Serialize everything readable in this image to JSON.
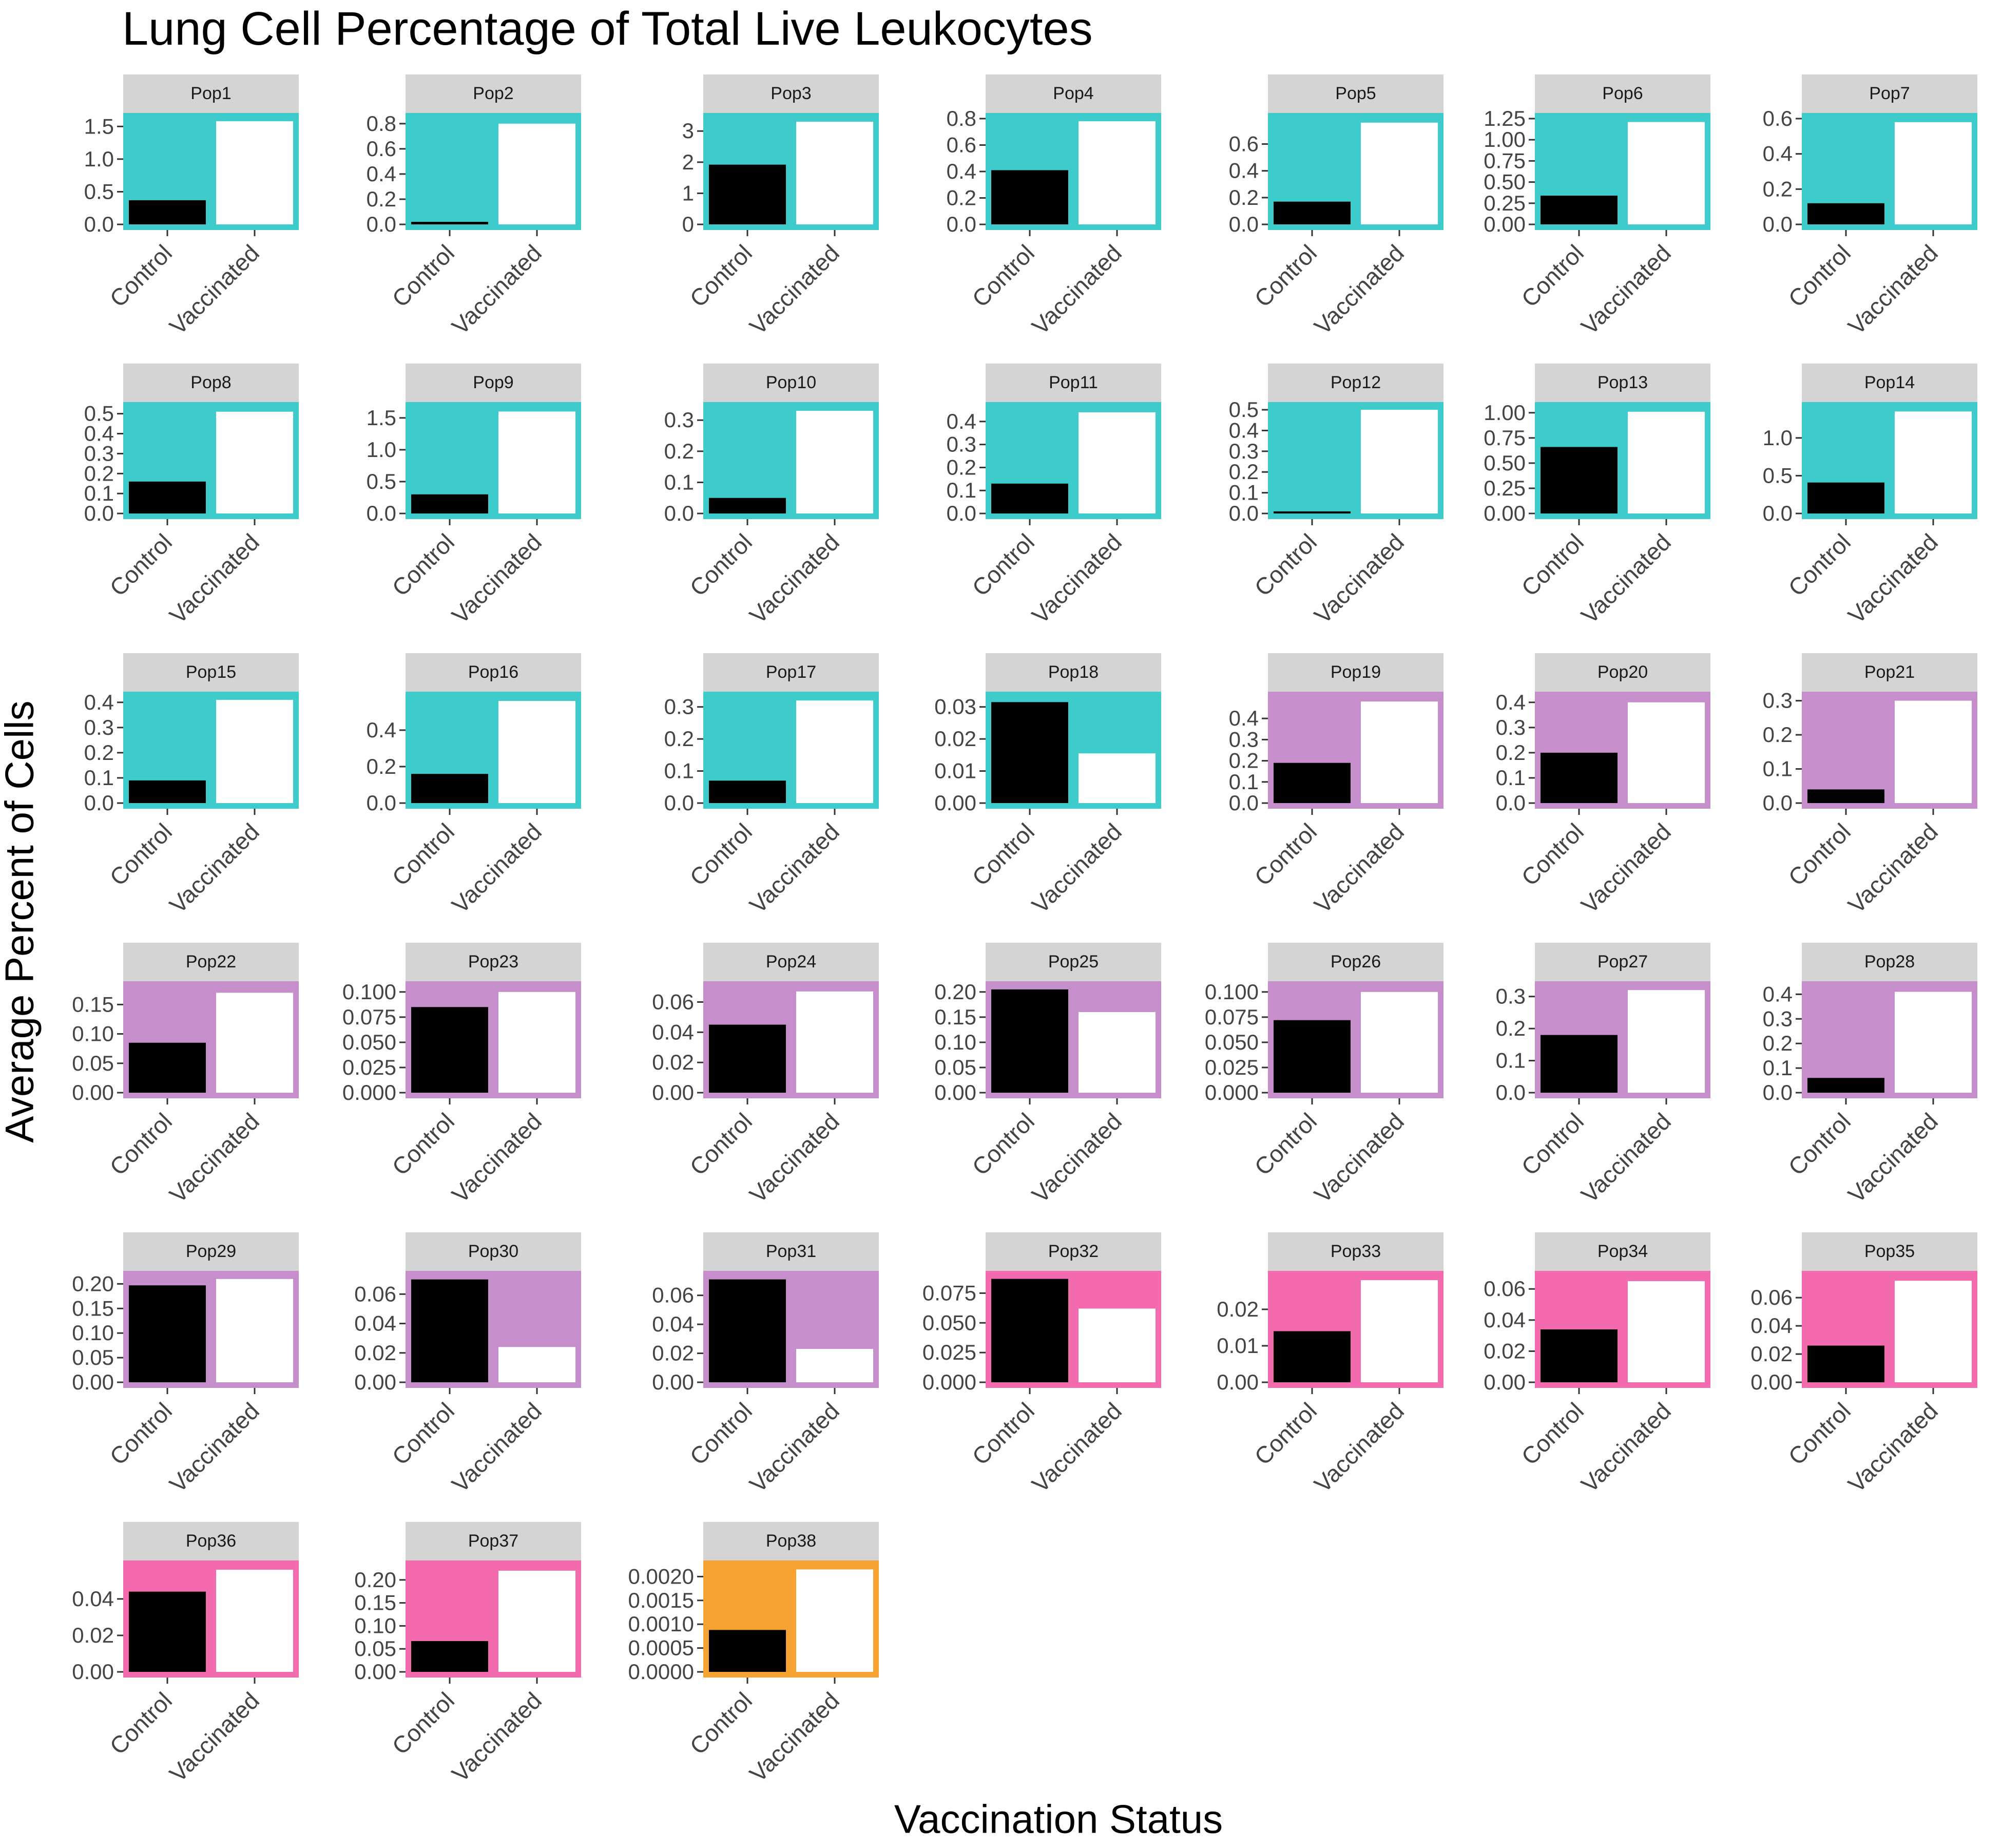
{
  "chart_data": {
    "type": "bar",
    "title": "Lung Cell Percentage of Total Live Leukocytes",
    "xlabel": "Vaccination Status",
    "ylabel": "Average Percent of Cells",
    "categories": [
      "Control",
      "Vaccinated"
    ],
    "group_colors": {
      "teal": "#3ECBCB",
      "purple": "#C68FCB",
      "pink": "#F46AAE",
      "orange": "#F6A332"
    },
    "bar_colors": {
      "Control": "#000000",
      "Vaccinated": "#ffffff"
    },
    "strip_color": "#D4D4D4",
    "facets": [
      {
        "name": "Pop1",
        "group": "teal",
        "ticks": [
          "0.0",
          "0.5",
          "1.0",
          "1.5"
        ],
        "ylim": [
          0,
          1.62
        ],
        "values": [
          0.37,
          1.58
        ]
      },
      {
        "name": "Pop2",
        "group": "teal",
        "ticks": [
          "0.0",
          "0.2",
          "0.4",
          "0.6",
          "0.8"
        ],
        "ylim": [
          0,
          0.84
        ],
        "values": [
          0.02,
          0.8
        ]
      },
      {
        "name": "Pop3",
        "group": "teal",
        "ticks": [
          "0",
          "1",
          "2",
          "3"
        ],
        "ylim": [
          0,
          3.4
        ],
        "values": [
          1.92,
          3.3
        ]
      },
      {
        "name": "Pop4",
        "group": "teal",
        "ticks": [
          "0.0",
          "0.2",
          "0.4",
          "0.6",
          "0.8"
        ],
        "ylim": [
          0,
          0.8
        ],
        "values": [
          0.41,
          0.78
        ]
      },
      {
        "name": "Pop5",
        "group": "teal",
        "ticks": [
          "0.0",
          "0.2",
          "0.4",
          "0.6"
        ],
        "ylim": [
          0,
          0.79
        ],
        "values": [
          0.17,
          0.76
        ]
      },
      {
        "name": "Pop6",
        "group": "teal",
        "ticks": [
          "0.00",
          "0.25",
          "0.50",
          "0.75",
          "1.00",
          "1.25"
        ],
        "ylim": [
          0,
          1.25
        ],
        "values": [
          0.34,
          1.21
        ]
      },
      {
        "name": "Pop7",
        "group": "teal",
        "ticks": [
          "0.0",
          "0.2",
          "0.4",
          "0.6"
        ],
        "ylim": [
          0,
          0.6
        ],
        "values": [
          0.12,
          0.58
        ]
      },
      {
        "name": "Pop8",
        "group": "teal",
        "ticks": [
          "0.0",
          "0.1",
          "0.2",
          "0.3",
          "0.4",
          "0.5"
        ],
        "ylim": [
          0,
          0.53
        ],
        "values": [
          0.16,
          0.51
        ]
      },
      {
        "name": "Pop9",
        "group": "teal",
        "ticks": [
          "0.0",
          "0.5",
          "1.0",
          "1.5"
        ],
        "ylim": [
          0,
          1.66
        ],
        "values": [
          0.3,
          1.6
        ]
      },
      {
        "name": "Pop10",
        "group": "teal",
        "ticks": [
          "0.0",
          "0.1",
          "0.2",
          "0.3"
        ],
        "ylim": [
          0,
          0.34
        ],
        "values": [
          0.05,
          0.33
        ]
      },
      {
        "name": "Pop11",
        "group": "teal",
        "ticks": [
          "0.0",
          "0.1",
          "0.2",
          "0.3",
          "0.4"
        ],
        "ylim": [
          0,
          0.46
        ],
        "values": [
          0.13,
          0.44
        ]
      },
      {
        "name": "Pop12",
        "group": "teal",
        "ticks": [
          "0.0",
          "0.1",
          "0.2",
          "0.3",
          "0.4",
          "0.5"
        ],
        "ylim": [
          0,
          0.51
        ],
        "values": [
          0.01,
          0.5
        ]
      },
      {
        "name": "Pop13",
        "group": "teal",
        "ticks": [
          "0.00",
          "0.25",
          "0.50",
          "0.75",
          "1.00"
        ],
        "ylim": [
          0,
          1.05
        ],
        "values": [
          0.66,
          1.01
        ]
      },
      {
        "name": "Pop14",
        "group": "teal",
        "ticks": [
          "0.0",
          "0.5",
          "1.0"
        ],
        "ylim": [
          0,
          1.4
        ],
        "values": [
          0.41,
          1.35
        ]
      },
      {
        "name": "Pop15",
        "group": "teal",
        "ticks": [
          "0.0",
          "0.1",
          "0.2",
          "0.3",
          "0.4"
        ],
        "ylim": [
          0,
          0.42
        ],
        "values": [
          0.09,
          0.41
        ]
      },
      {
        "name": "Pop16",
        "group": "teal",
        "ticks": [
          "0.0",
          "0.2",
          "0.4"
        ],
        "ylim": [
          0,
          0.58
        ],
        "values": [
          0.16,
          0.56
        ]
      },
      {
        "name": "Pop17",
        "group": "teal",
        "ticks": [
          "0.0",
          "0.1",
          "0.2",
          "0.3"
        ],
        "ylim": [
          0,
          0.33
        ],
        "values": [
          0.07,
          0.32
        ]
      },
      {
        "name": "Pop18",
        "group": "teal",
        "ticks": [
          "0.00",
          "0.01",
          "0.02",
          "0.03"
        ],
        "ylim": [
          0,
          0.033
        ],
        "values": [
          0.0315,
          0.0155
        ]
      },
      {
        "name": "Pop19",
        "group": "purple",
        "ticks": [
          "0.0",
          "0.1",
          "0.2",
          "0.3",
          "0.4"
        ],
        "ylim": [
          0,
          0.5
        ],
        "values": [
          0.19,
          0.48
        ]
      },
      {
        "name": "Pop20",
        "group": "purple",
        "ticks": [
          "0.0",
          "0.1",
          "0.2",
          "0.3",
          "0.4"
        ],
        "ylim": [
          0,
          0.42
        ],
        "values": [
          0.2,
          0.4
        ]
      },
      {
        "name": "Pop21",
        "group": "purple",
        "ticks": [
          "0.0",
          "0.1",
          "0.2",
          "0.3"
        ],
        "ylim": [
          0,
          0.31
        ],
        "values": [
          0.04,
          0.3
        ]
      },
      {
        "name": "Pop22",
        "group": "purple",
        "ticks": [
          "0.00",
          "0.05",
          "0.10",
          "0.15"
        ],
        "ylim": [
          0,
          0.18
        ],
        "values": [
          0.085,
          0.17
        ]
      },
      {
        "name": "Pop23",
        "group": "purple",
        "ticks": [
          "0.000",
          "0.025",
          "0.050",
          "0.075",
          "0.100"
        ],
        "ylim": [
          0,
          0.105
        ],
        "values": [
          0.085,
          0.1
        ]
      },
      {
        "name": "Pop24",
        "group": "purple",
        "ticks": [
          "0.00",
          "0.02",
          "0.04",
          "0.06"
        ],
        "ylim": [
          0,
          0.07
        ],
        "values": [
          0.045,
          0.067
        ]
      },
      {
        "name": "Pop25",
        "group": "purple",
        "ticks": [
          "0.00",
          "0.05",
          "0.10",
          "0.15",
          "0.20"
        ],
        "ylim": [
          0,
          0.21
        ],
        "values": [
          0.205,
          0.16
        ]
      },
      {
        "name": "Pop26",
        "group": "purple",
        "ticks": [
          "0.000",
          "0.025",
          "0.050",
          "0.075",
          "0.100"
        ],
        "ylim": [
          0,
          0.105
        ],
        "values": [
          0.072,
          0.1
        ]
      },
      {
        "name": "Pop27",
        "group": "purple",
        "ticks": [
          "0.0",
          "0.1",
          "0.2",
          "0.3"
        ],
        "ylim": [
          0,
          0.33
        ],
        "values": [
          0.18,
          0.32
        ]
      },
      {
        "name": "Pop28",
        "group": "purple",
        "ticks": [
          "0.0",
          "0.1",
          "0.2",
          "0.3",
          "0.4"
        ],
        "ylim": [
          0,
          0.43
        ],
        "values": [
          0.06,
          0.41
        ]
      },
      {
        "name": "Pop29",
        "group": "purple",
        "ticks": [
          "0.00",
          "0.05",
          "0.10",
          "0.15",
          "0.20"
        ],
        "ylim": [
          0,
          0.215
        ],
        "values": [
          0.197,
          0.21
        ]
      },
      {
        "name": "Pop30",
        "group": "purple",
        "ticks": [
          "0.00",
          "0.02",
          "0.04",
          "0.06"
        ],
        "ylim": [
          0,
          0.072
        ],
        "values": [
          0.07,
          0.024
        ]
      },
      {
        "name": "Pop31",
        "group": "purple",
        "ticks": [
          "0.00",
          "0.02",
          "0.04",
          "0.06"
        ],
        "ylim": [
          0,
          0.073
        ],
        "values": [
          0.071,
          0.023
        ]
      },
      {
        "name": "Pop32",
        "group": "pink",
        "ticks": [
          "0.000",
          "0.025",
          "0.050",
          "0.075"
        ],
        "ylim": [
          0,
          0.089
        ],
        "values": [
          0.087,
          0.062
        ]
      },
      {
        "name": "Pop33",
        "group": "pink",
        "ticks": [
          "0.00",
          "0.01",
          "0.02"
        ],
        "ylim": [
          0,
          0.029
        ],
        "values": [
          0.014,
          0.028
        ]
      },
      {
        "name": "Pop34",
        "group": "pink",
        "ticks": [
          "0.00",
          "0.02",
          "0.04",
          "0.06"
        ],
        "ylim": [
          0,
          0.068
        ],
        "values": [
          0.034,
          0.065
        ]
      },
      {
        "name": "Pop35",
        "group": "pink",
        "ticks": [
          "0.00",
          "0.02",
          "0.04",
          "0.06"
        ],
        "ylim": [
          0,
          0.075
        ],
        "values": [
          0.026,
          0.072
        ]
      },
      {
        "name": "Pop36",
        "group": "pink",
        "ticks": [
          "0.00",
          "0.02",
          "0.04"
        ],
        "ylim": [
          0,
          0.058
        ],
        "values": [
          0.044,
          0.056
        ]
      },
      {
        "name": "Pop37",
        "group": "pink",
        "ticks": [
          "0.00",
          "0.05",
          "0.10",
          "0.15",
          "0.20"
        ],
        "ylim": [
          0,
          0.23
        ],
        "values": [
          0.067,
          0.22
        ]
      },
      {
        "name": "Pop38",
        "group": "orange",
        "ticks": [
          "0.0000",
          "0.0005",
          "0.0010",
          "0.0015",
          "0.0020"
        ],
        "ylim": [
          0,
          0.00222
        ],
        "values": [
          0.00088,
          0.00215
        ]
      }
    ]
  }
}
